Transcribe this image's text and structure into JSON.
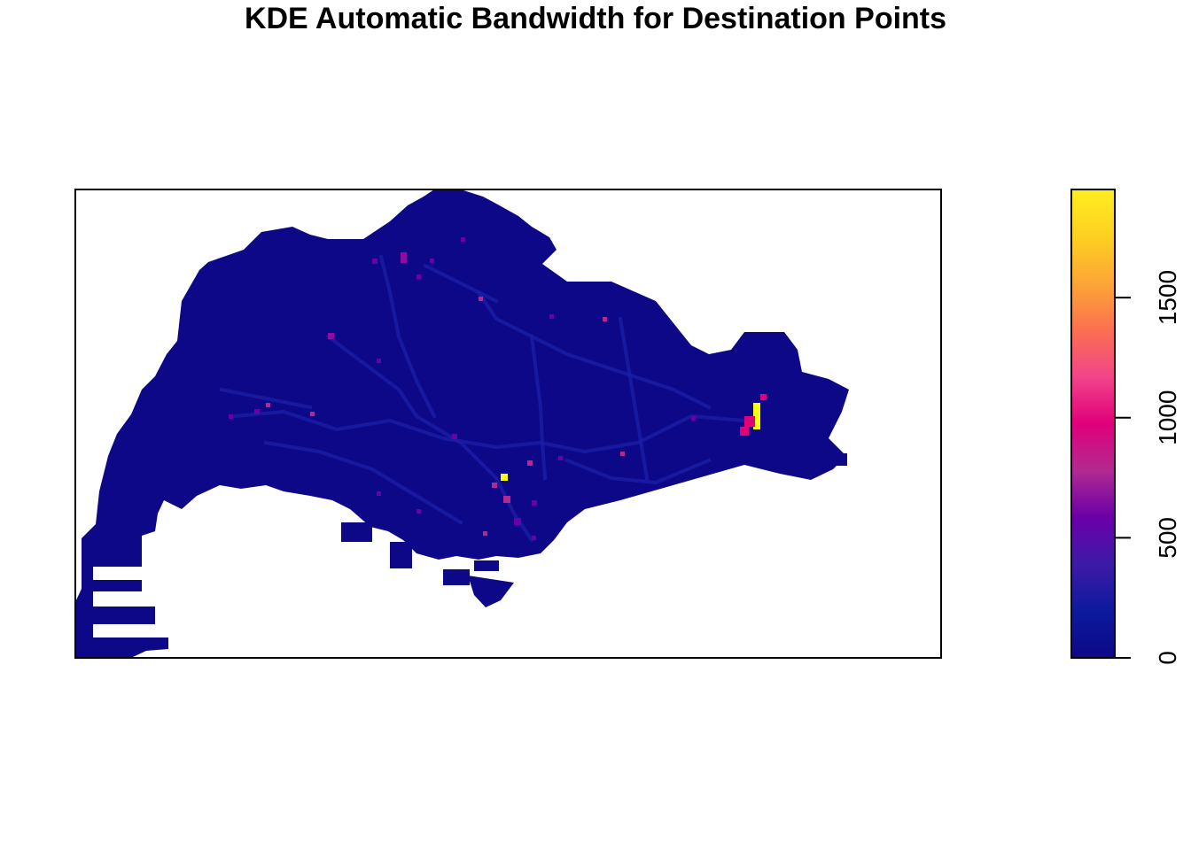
{
  "title": "KDE Automatic Bandwidth for Destination Points",
  "colors": {
    "background": "#ffffff",
    "palette": [
      "#0d0887",
      "#0c1a9c",
      "#3d1aa8",
      "#6a00a8",
      "#8f0da4",
      "#b12a90",
      "#cc4778",
      "#e16462",
      "#f2844b",
      "#fca636",
      "#f7d13d",
      "#fcfd12"
    ],
    "legend_stops": [
      "#0d0887",
      "#0c1a9c",
      "#3d1aa8",
      "#6a00a8",
      "#b12a90",
      "#e0007a",
      "#f2448a",
      "#fb7050",
      "#fca636",
      "#fdd020",
      "#ffee20"
    ]
  },
  "chart_data": {
    "type": "heatmap",
    "title": "KDE Automatic Bandwidth for Destination Points",
    "xlabel": "",
    "ylabel": "",
    "axes_shown": false,
    "grid": false,
    "legend_position": "right",
    "colorbar": {
      "range": [
        0,
        1950
      ],
      "ticks": [
        0,
        500,
        1000,
        1500
      ],
      "tick_labels": [
        "0",
        "500",
        "1000",
        "1500"
      ]
    },
    "hotspots": [
      {
        "value": 1950,
        "location": "eastern cluster"
      },
      {
        "value": 1800,
        "location": "central south"
      },
      {
        "value": 900,
        "location": "central south"
      },
      {
        "value": 800,
        "location": "north"
      },
      {
        "value": 750,
        "location": "west-central"
      }
    ]
  }
}
